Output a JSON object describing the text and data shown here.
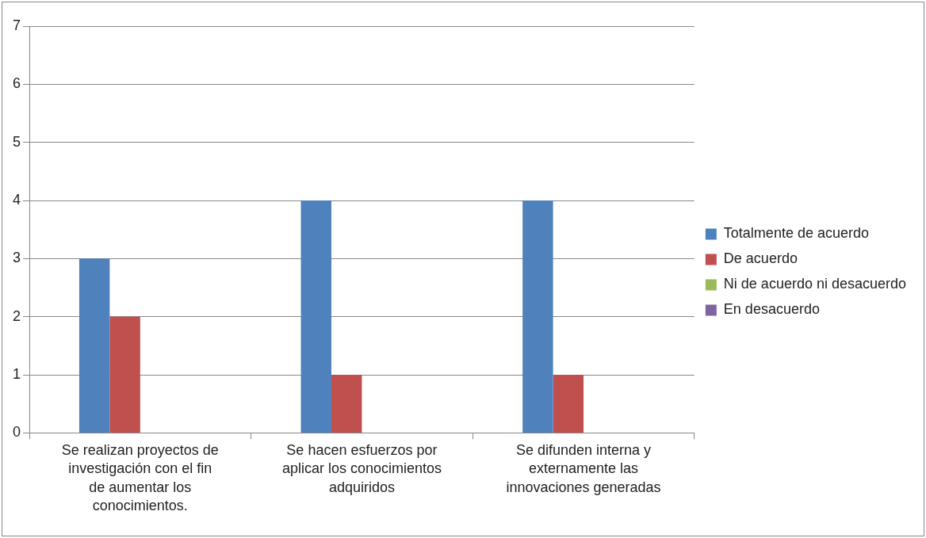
{
  "chart_data": {
    "type": "bar",
    "categories": [
      "Se realizan proyectos de investigación con el fin de aumentar los conocimientos.",
      "Se hacen esfuerzos por aplicar los conocimientos adquiridos",
      "Se difunden interna y externamente las innovaciones generadas"
    ],
    "series": [
      {
        "name": "Totalmente de acuerdo",
        "color": "#4f81bd",
        "values": [
          3,
          4,
          4
        ]
      },
      {
        "name": "De acuerdo",
        "color": "#c0504d",
        "values": [
          2,
          1,
          1
        ]
      },
      {
        "name": "Ni de acuerdo ni desacuerdo",
        "color": "#9bbb59",
        "values": [
          0,
          0,
          0
        ]
      },
      {
        "name": "En desacuerdo",
        "color": "#8064a2",
        "values": [
          0,
          0,
          0
        ]
      }
    ],
    "ylim": [
      0,
      7
    ],
    "yticks": [
      0,
      1,
      2,
      3,
      4,
      5,
      6,
      7
    ],
    "grid": "y",
    "legend": "right"
  }
}
